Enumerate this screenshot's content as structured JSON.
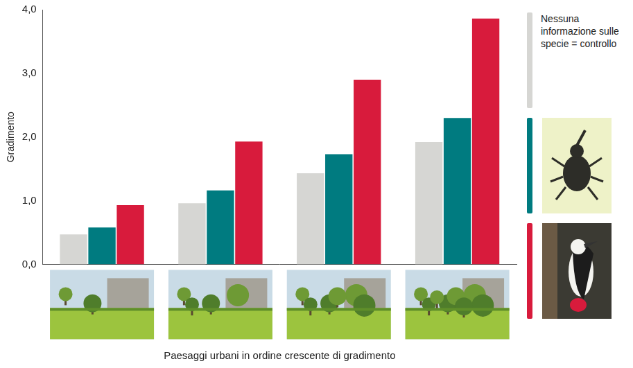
{
  "chart_data": {
    "type": "bar",
    "y_label": "Gradimento",
    "x_label": "Paesaggi urbani in ordine crescente di gradimento",
    "categories": [
      null,
      null,
      null,
      null
    ],
    "series": [
      {
        "name": "Nessuna informazione sulle specie = controllo",
        "color": "#d6d6d3",
        "values": [
          0.47,
          0.96,
          1.43,
          1.92
        ]
      },
      {
        "color": "#007b80",
        "values": [
          0.58,
          1.16,
          1.73,
          2.3
        ]
      },
      {
        "color": "#d81b3c",
        "values": [
          0.93,
          1.93,
          2.9,
          3.86
        ]
      }
    ],
    "ylim": [
      0,
      4
    ],
    "yticks": [
      {
        "value": 0,
        "label": "0,0"
      },
      {
        "value": 1,
        "label": "1,0"
      },
      {
        "value": 2,
        "label": "2,0"
      },
      {
        "value": 3,
        "label": "3,0"
      },
      {
        "value": 4,
        "label": "4,0"
      }
    ],
    "grid": false,
    "legend": "right"
  }
}
